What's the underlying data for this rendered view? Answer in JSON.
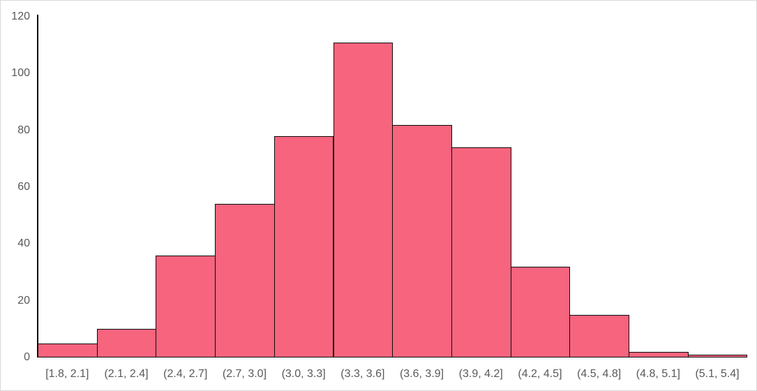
{
  "chart_data": {
    "type": "bar",
    "subtype": "histogram",
    "title": "",
    "xlabel": "",
    "ylabel": "",
    "categories": [
      "[1.8, 2.1]",
      "(2.1, 2.4]",
      "(2.4, 2.7]",
      "(2.7, 3.0]",
      "(3.0, 3.3]",
      "(3.3, 3.6]",
      "(3.6, 3.9]",
      "(3.9, 4.2]",
      "(4.2, 4.5]",
      "(4.5, 4.8]",
      "(4.8, 5.1]",
      "(5.1, 5.4]"
    ],
    "values": [
      5,
      10,
      36,
      54,
      78,
      111,
      82,
      74,
      32,
      15,
      2,
      1
    ],
    "total_count": 500,
    "ylim": [
      0,
      120
    ],
    "yticks": [
      0,
      20,
      40,
      60,
      80,
      100,
      120
    ],
    "bar_gap": 0,
    "grid": false,
    "legend": false
  },
  "colors": {
    "bar_fill": "#F7647E",
    "bar_border": "#0d0d0d",
    "axis_line": "#000000",
    "tick_label_text": "#595959",
    "chart_border": "#d9d9d9",
    "background": "#ffffff"
  }
}
